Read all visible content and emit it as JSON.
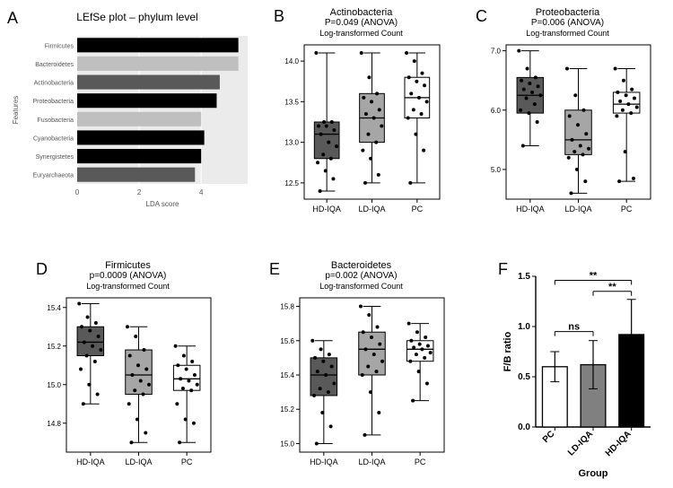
{
  "panelA": {
    "letter": "A",
    "title": "LEfSe plot – phylum level",
    "ylabel": "Features",
    "xlabel": "LDA score",
    "xlim": [
      0,
      5.5
    ],
    "xticks": [
      0,
      2,
      4
    ],
    "categories": [
      "Firmicutes",
      "Bacteroidetes",
      "Actinobacteria",
      "Proteobacteria",
      "Fusobacteria",
      "Cyanobacteria",
      "Synergistetes",
      "Euryarchaeota"
    ],
    "values": [
      5.2,
      5.2,
      4.6,
      4.5,
      4.0,
      4.1,
      4.0,
      3.8
    ],
    "bar_colors": [
      "#000000",
      "#bfbfbf",
      "#595959",
      "#000000",
      "#bfbfbf",
      "#000000",
      "#000000",
      "#595959"
    ],
    "background": "#ebebeb",
    "grid_color": "#ffffff",
    "label_fontsize": 7,
    "axis_fontsize": 8
  },
  "panelB": {
    "letter": "B",
    "title": "Actinobacteria",
    "pvalue": "P=0.049 (ANOVA)",
    "ylabel": "Log-transformed Count",
    "groups": [
      "HD-IQA",
      "LD-IQA",
      "PC"
    ],
    "ylim": [
      12.3,
      14.2
    ],
    "yticks": [
      12.5,
      13.0,
      13.5,
      14.0
    ],
    "boxes": [
      {
        "min": 12.4,
        "q1": 12.8,
        "med": 13.1,
        "q3": 13.25,
        "max": 14.1,
        "fill": "#595959"
      },
      {
        "min": 12.5,
        "q1": 13.0,
        "med": 13.3,
        "q3": 13.6,
        "max": 14.1,
        "fill": "#a6a6a6"
      },
      {
        "min": 12.5,
        "q1": 13.3,
        "med": 13.55,
        "q3": 13.8,
        "max": 14.1,
        "fill": "#ffffff"
      }
    ],
    "points": [
      {
        "g": 0,
        "vals": [
          14.1,
          13.25,
          13.25,
          13.2,
          13.2,
          13.15,
          13.1,
          13.0,
          12.95,
          12.85,
          12.8,
          12.75,
          12.65,
          12.55,
          12.4
        ]
      },
      {
        "g": 1,
        "vals": [
          14.1,
          13.8,
          13.6,
          13.55,
          13.5,
          13.4,
          13.35,
          13.3,
          13.2,
          13.1,
          13.0,
          12.9,
          12.8,
          12.6,
          12.5
        ]
      },
      {
        "g": 2,
        "vals": [
          14.1,
          14.0,
          13.85,
          13.8,
          13.75,
          13.7,
          13.6,
          13.55,
          13.5,
          13.4,
          13.35,
          13.3,
          13.1,
          12.9,
          12.5
        ]
      }
    ]
  },
  "panelC": {
    "letter": "C",
    "title": "Proteobacteria",
    "pvalue": "P=0.006 (ANOVA)",
    "ylabel": "Log-transformed Count",
    "groups": [
      "HD-IQA",
      "LD-IQA",
      "PC"
    ],
    "ylim": [
      4.5,
      7.1
    ],
    "yticks": [
      5,
      6,
      7
    ],
    "boxes": [
      {
        "min": 5.4,
        "q1": 5.95,
        "med": 6.25,
        "q3": 6.55,
        "max": 7.0,
        "fill": "#595959"
      },
      {
        "min": 4.6,
        "q1": 5.25,
        "med": 5.5,
        "q3": 6.0,
        "max": 6.7,
        "fill": "#a6a6a6"
      },
      {
        "min": 4.8,
        "q1": 5.95,
        "med": 6.1,
        "q3": 6.3,
        "max": 6.7,
        "fill": "#ffffff"
      }
    ],
    "points": [
      {
        "g": 0,
        "vals": [
          7.0,
          6.7,
          6.55,
          6.5,
          6.45,
          6.4,
          6.35,
          6.3,
          6.25,
          6.2,
          6.1,
          6.0,
          5.95,
          5.8,
          5.4
        ]
      },
      {
        "g": 1,
        "vals": [
          6.7,
          6.25,
          6.0,
          5.9,
          5.75,
          5.6,
          5.5,
          5.4,
          5.35,
          5.3,
          5.25,
          5.2,
          5.0,
          4.8,
          4.6
        ]
      },
      {
        "g": 2,
        "vals": [
          6.7,
          6.5,
          6.35,
          6.3,
          6.25,
          6.2,
          6.15,
          6.1,
          6.05,
          6.0,
          5.95,
          5.9,
          5.3,
          4.85,
          4.8
        ]
      }
    ]
  },
  "panelD": {
    "letter": "D",
    "title": "Firmicutes",
    "pvalue": "p=0.0009 (ANOVA)",
    "ylabel": "Log-transformed Count",
    "groups": [
      "HD-IQA",
      "LD-IQA",
      "PC"
    ],
    "ylim": [
      14.65,
      15.45
    ],
    "yticks": [
      14.8,
      15.0,
      15.2,
      15.4
    ],
    "boxes": [
      {
        "min": 14.9,
        "q1": 15.15,
        "med": 15.22,
        "q3": 15.3,
        "max": 15.42,
        "fill": "#595959"
      },
      {
        "min": 14.7,
        "q1": 14.95,
        "med": 15.05,
        "q3": 15.18,
        "max": 15.3,
        "fill": "#a6a6a6"
      },
      {
        "min": 14.7,
        "q1": 14.97,
        "med": 15.03,
        "q3": 15.1,
        "max": 15.2,
        "fill": "#ffffff"
      }
    ],
    "points": [
      {
        "g": 0,
        "vals": [
          15.42,
          15.35,
          15.32,
          15.3,
          15.28,
          15.25,
          15.22,
          15.2,
          15.18,
          15.15,
          15.12,
          15.08,
          15.0,
          14.95,
          14.9
        ]
      },
      {
        "g": 1,
        "vals": [
          15.3,
          15.25,
          15.18,
          15.15,
          15.1,
          15.08,
          15.05,
          15.02,
          15.0,
          14.97,
          14.95,
          14.9,
          14.82,
          14.75,
          14.7
        ]
      },
      {
        "g": 2,
        "vals": [
          15.2,
          15.15,
          15.12,
          15.1,
          15.08,
          15.05,
          15.03,
          15.02,
          15.0,
          14.98,
          14.97,
          14.9,
          14.82,
          14.8,
          14.7
        ]
      }
    ]
  },
  "panelE": {
    "letter": "E",
    "title": "Bacteroidetes",
    "pvalue": "p=0.002 (ANOVA)",
    "ylabel": "Log-transformed Count",
    "groups": [
      "HD-IQA",
      "LD-IQA",
      "PC"
    ],
    "ylim": [
      14.95,
      15.85
    ],
    "yticks": [
      15.0,
      15.2,
      15.4,
      15.6,
      15.8
    ],
    "boxes": [
      {
        "min": 15.0,
        "q1": 15.28,
        "med": 15.4,
        "q3": 15.5,
        "max": 15.6,
        "fill": "#595959"
      },
      {
        "min": 15.05,
        "q1": 15.4,
        "med": 15.55,
        "q3": 15.65,
        "max": 15.8,
        "fill": "#a6a6a6"
      },
      {
        "min": 15.25,
        "q1": 15.48,
        "med": 15.55,
        "q3": 15.6,
        "max": 15.7,
        "fill": "#ffffff"
      }
    ],
    "points": [
      {
        "g": 0,
        "vals": [
          15.6,
          15.55,
          15.52,
          15.5,
          15.48,
          15.45,
          15.42,
          15.4,
          15.35,
          15.32,
          15.3,
          15.28,
          15.18,
          15.1,
          15.0
        ]
      },
      {
        "g": 1,
        "vals": [
          15.8,
          15.75,
          15.68,
          15.65,
          15.62,
          15.58,
          15.55,
          15.52,
          15.48,
          15.45,
          15.42,
          15.4,
          15.3,
          15.18,
          15.05
        ]
      },
      {
        "g": 2,
        "vals": [
          15.7,
          15.65,
          15.62,
          15.6,
          15.58,
          15.57,
          15.56,
          15.55,
          15.53,
          15.52,
          15.5,
          15.48,
          15.42,
          15.35,
          15.25
        ]
      }
    ]
  },
  "panelF": {
    "letter": "F",
    "ylabel": "F/B ratio",
    "xlabel": "Group",
    "groups": [
      "PC",
      "LD-IQA",
      "HD-IQA"
    ],
    "ylim": [
      0,
      1.5
    ],
    "yticks": [
      0,
      0.5,
      1.0,
      1.5
    ],
    "bars": [
      {
        "mean": 0.6,
        "err": 0.15,
        "fill": "#ffffff"
      },
      {
        "mean": 0.62,
        "err": 0.24,
        "fill": "#808080"
      },
      {
        "mean": 0.92,
        "err": 0.35,
        "fill": "#000000"
      }
    ],
    "sig": [
      {
        "g1": 0,
        "g2": 1,
        "y": 0.95,
        "label": "ns"
      },
      {
        "g1": 1,
        "g2": 2,
        "y": 1.35,
        "label": "**"
      },
      {
        "g1": 0,
        "g2": 2,
        "y": 1.46,
        "label": "**"
      }
    ],
    "axis_color": "#000000",
    "label_fontsize": 11
  },
  "colors": {
    "point": "#000000",
    "box_stroke": "#000000"
  }
}
